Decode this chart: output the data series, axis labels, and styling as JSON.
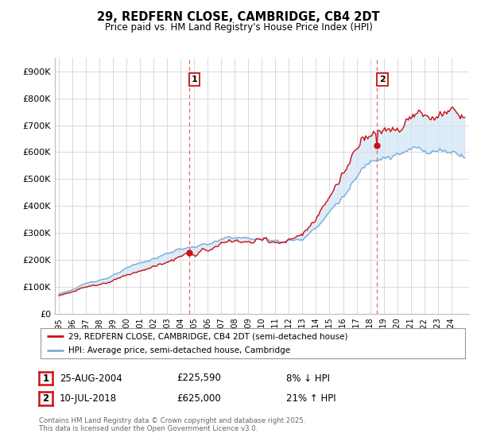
{
  "title": "29, REDFERN CLOSE, CAMBRIDGE, CB4 2DT",
  "subtitle": "Price paid vs. HM Land Registry's House Price Index (HPI)",
  "ylim": [
    0,
    950000
  ],
  "yticks": [
    0,
    100000,
    200000,
    300000,
    400000,
    500000,
    600000,
    700000,
    800000,
    900000
  ],
  "ytick_labels": [
    "£0",
    "£100K",
    "£200K",
    "£300K",
    "£400K",
    "£500K",
    "£600K",
    "£700K",
    "£800K",
    "£900K"
  ],
  "hpi_color": "#7aaddb",
  "price_color": "#cc1111",
  "fill_color": "#d0e4f5",
  "vline_color": "#dd4444",
  "legend_label_price": "29, REDFERN CLOSE, CAMBRIDGE, CB4 2DT (semi-detached house)",
  "legend_label_hpi": "HPI: Average price, semi-detached house, Cambridge",
  "annotation1_label": "1",
  "annotation2_label": "2",
  "footer_line1": "Contains HM Land Registry data © Crown copyright and database right 2025.",
  "footer_line2": "This data is licensed under the Open Government Licence v3.0.",
  "table_row1": [
    "1",
    "25-AUG-2004",
    "£225,590",
    "8% ↓ HPI"
  ],
  "table_row2": [
    "2",
    "10-JUL-2018",
    "£625,000",
    "21% ↑ HPI"
  ],
  "background_color": "#ffffff",
  "grid_color": "#cccccc",
  "sale1_year": 2004.648,
  "sale1_price": 225590,
  "sale2_year": 2018.521,
  "sale2_price": 625000,
  "xmin": 1995,
  "xmax": 2025
}
